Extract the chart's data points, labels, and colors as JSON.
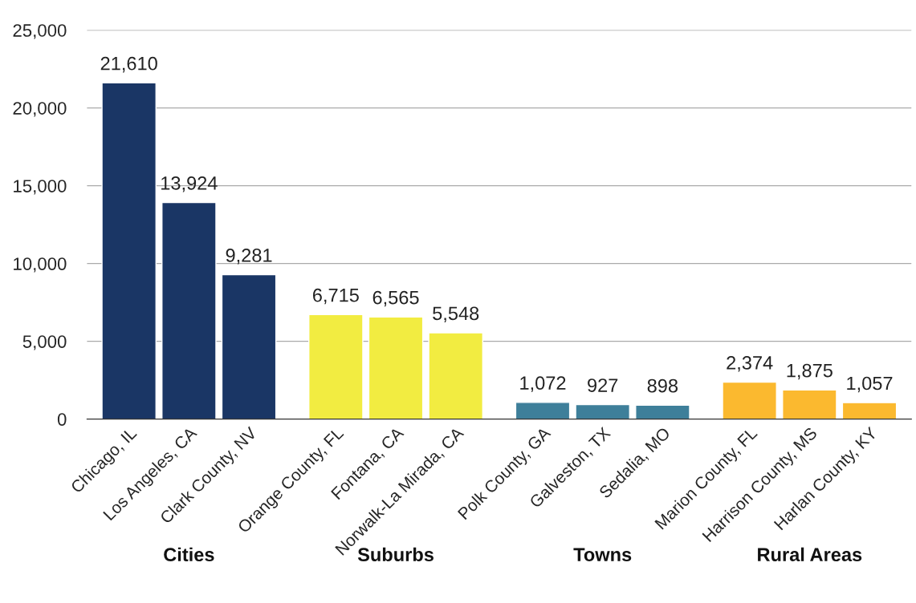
{
  "chart_data": {
    "type": "bar",
    "categories": [
      "Chicago, IL",
      "Los Angeles, CA",
      "Clark County, NV",
      "Orange County, FL",
      "Fontana, CA",
      "Norwalk-La Mirada, CA",
      "Polk County, GA",
      "Galveston, TX",
      "Sedalia, MO",
      "Marion County, FL",
      "Harrison County, MS",
      "Harlan County, KY"
    ],
    "series": [
      {
        "color": "#1a3665",
        "values": [
          21610,
          13924,
          9281,
          null,
          null,
          null,
          null,
          null,
          null,
          null,
          null,
          null
        ],
        "value_labels": [
          "21,610",
          "13,924",
          "9,281",
          null,
          null,
          null,
          null,
          null,
          null,
          null,
          null,
          null
        ]
      },
      {
        "color": "#f2ec41",
        "values": [
          null,
          null,
          null,
          6715,
          6565,
          5548,
          null,
          null,
          null,
          null,
          null,
          null
        ],
        "value_labels": [
          null,
          null,
          null,
          "6,715",
          "6,565",
          "5,548",
          null,
          null,
          null,
          null,
          null,
          null
        ]
      },
      {
        "color": "#3e7f9a",
        "values": [
          null,
          null,
          null,
          null,
          null,
          null,
          1072,
          927,
          898,
          null,
          null,
          null
        ],
        "value_labels": [
          null,
          null,
          null,
          null,
          null,
          null,
          "1,072",
          "927",
          "898",
          null,
          null,
          null
        ]
      },
      {
        "color": "#fbb92f",
        "values": [
          null,
          null,
          null,
          null,
          null,
          null,
          null,
          null,
          null,
          2374,
          1875,
          1057
        ],
        "value_labels": [
          null,
          null,
          null,
          null,
          null,
          null,
          null,
          null,
          null,
          "2,374",
          "1,875",
          "1,057"
        ]
      }
    ],
    "annotations": [
      "Cities",
      "Suburbs",
      "Towns",
      "Rural Areas"
    ],
    "ylim": [
      0,
      25000
    ],
    "yticks": [
      {
        "value": 0,
        "label": "0"
      },
      {
        "value": 5000,
        "label": "5,000"
      },
      {
        "value": 10000,
        "label": "10,000"
      },
      {
        "value": 15000,
        "label": "15,000"
      },
      {
        "value": 20000,
        "label": "20,000"
      },
      {
        "value": 25000,
        "label": "25,000"
      }
    ],
    "grid": "y",
    "legend": false
  }
}
